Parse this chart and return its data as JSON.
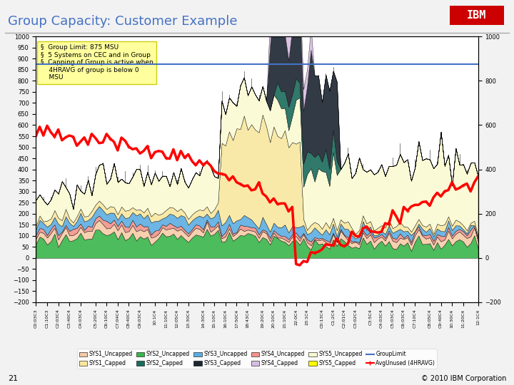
{
  "title": "Group Capacity: Customer Example",
  "title_color": "#4472C4",
  "background_color": "#FFFFFF",
  "slide_bg": "#F2F2F2",
  "ylim": [
    -200,
    1000
  ],
  "group_limit": 875,
  "group_limit_color": "#4472C4",
  "avg_unused_color": "#FF0000",
  "annotation_bg": "#FFFF99",
  "footer_text": "© 2010 IBM Corporation",
  "page_num": "21",
  "layer_colors": [
    "#39B54A",
    "#F5CBA7",
    "#F1948A",
    "#5DADE2",
    "#F9E79F",
    "#FAFAD2",
    "#1A6B5A",
    "#1B2631",
    "#D7BDE2"
  ],
  "legend_labels": [
    "SYS1_Uncapped",
    "SYS1_Capped",
    "SYS2_Uncapped",
    "SYS2_Capped",
    "SYS3_Uncapped",
    "SYS3_Capped",
    "SYS4_Uncapped",
    "SYS4_Capped",
    "SYS5_Uncapped",
    "SYS5_Capped",
    "GroupLimit",
    "AvgUnused (4HRAVG)"
  ],
  "legend_colors": [
    "#F5CBA7",
    "#F9E79F",
    "#39B54A",
    "#1A6B5A",
    "#5DADE2",
    "#1B2631",
    "#F1948A",
    "#D7BDE2",
    "#FAFAD2",
    "#FFFF00",
    "#4472C4",
    "#FF0000"
  ],
  "x_labels": [
    "C0:03C3",
    "C1:10C3",
    "C2:03C4",
    "C3:40C4",
    "C4:03C4",
    "C5:20C4",
    "C6:10C4",
    "C7:04C4",
    "C8:40C4",
    "C9:03C4",
    "10:1C4",
    "11:10C4",
    "12:05C4",
    "13:30C4",
    "14:30C4",
    "15:10C4",
    "16:10C4",
    "17:50C4",
    "18:43C4",
    "19:20C4",
    "20:10C4",
    "21:10C4",
    "22:0C4",
    "23:1C4",
    "C0:13C4",
    "C1:2C4",
    "C2:01C4",
    "C3:02C4",
    "C3:5C4",
    "C4:03C4",
    "C5:03C4",
    "C6:03C4",
    "C7:10C4",
    "C8:05C4",
    "C9:40C4",
    "10:30C4",
    "11:20C4",
    "12:1C4"
  ]
}
